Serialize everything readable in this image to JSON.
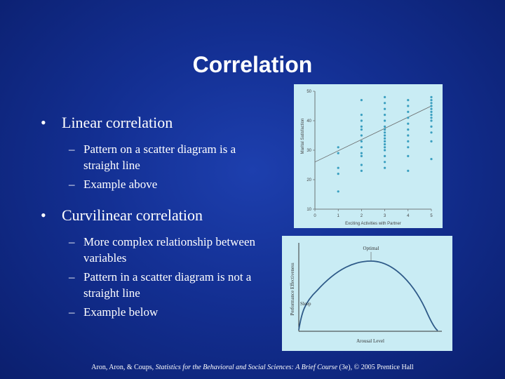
{
  "slide": {
    "title": "Correlation",
    "bullets": [
      {
        "text": "Linear correlation",
        "subs": [
          "Pattern on a scatter diagram is a straight line",
          "Example above"
        ]
      },
      {
        "text": "Curvilinear correlation",
        "subs": [
          "More complex relationship between variables",
          "Pattern in a scatter diagram is not a straight line",
          "Example below"
        ]
      }
    ],
    "bullet_glyph": "•",
    "dash_glyph": "–",
    "footer": {
      "authors": "Aron, Aron, & Coups, ",
      "book": "Statistics for the Behavioral and Social Sciences: A Brief Course",
      "edition": " (3e), © 2005 Prentice Hall"
    }
  },
  "chart_data": [
    {
      "type": "scatter",
      "xlabel": "Exciting Activities with Partner",
      "ylabel": "Marital Satisfaction",
      "xlim": [
        0,
        5
      ],
      "ylim": [
        10,
        50
      ],
      "x_ticks": [
        "0",
        "1",
        "2",
        "3",
        "4",
        "5"
      ],
      "y_ticks": [
        "10",
        "20",
        "30",
        "40",
        "50"
      ],
      "points": [
        [
          1,
          16
        ],
        [
          1,
          22
        ],
        [
          1,
          24
        ],
        [
          1,
          29
        ],
        [
          1,
          31
        ],
        [
          2,
          23
        ],
        [
          2,
          25
        ],
        [
          2,
          28
        ],
        [
          2,
          29
        ],
        [
          2,
          31
        ],
        [
          2,
          33
        ],
        [
          2,
          35
        ],
        [
          2,
          37
        ],
        [
          2,
          38
        ],
        [
          2,
          40
        ],
        [
          2,
          42
        ],
        [
          2,
          47
        ],
        [
          3,
          24
        ],
        [
          3,
          26
        ],
        [
          3,
          28
        ],
        [
          3,
          30
        ],
        [
          3,
          31
        ],
        [
          3,
          32
        ],
        [
          3,
          33
        ],
        [
          3,
          34
        ],
        [
          3,
          35
        ],
        [
          3,
          36
        ],
        [
          3,
          37
        ],
        [
          3,
          38
        ],
        [
          3,
          40
        ],
        [
          3,
          42
        ],
        [
          3,
          44
        ],
        [
          3,
          46
        ],
        [
          3,
          48
        ],
        [
          4,
          23
        ],
        [
          4,
          28
        ],
        [
          4,
          31
        ],
        [
          4,
          33
        ],
        [
          4,
          35
        ],
        [
          4,
          37
        ],
        [
          4,
          39
        ],
        [
          4,
          41
        ],
        [
          4,
          43
        ],
        [
          4,
          45
        ],
        [
          4,
          47
        ],
        [
          5,
          27
        ],
        [
          5,
          33
        ],
        [
          5,
          36
        ],
        [
          5,
          38
        ],
        [
          5,
          40
        ],
        [
          5,
          41
        ],
        [
          5,
          42
        ],
        [
          5,
          43
        ],
        [
          5,
          44
        ],
        [
          5,
          45
        ],
        [
          5,
          46
        ],
        [
          5,
          47
        ],
        [
          5,
          48
        ]
      ],
      "trend": [
        [
          0,
          26
        ],
        [
          5,
          45
        ]
      ],
      "point_color": "#3a9fc0"
    },
    {
      "type": "line",
      "xlabel": "Arousal Level",
      "ylabel": "Performance Effectiveness",
      "annotations": [
        "Optimal",
        "Sleep"
      ],
      "line_color": "#2e5a88"
    }
  ]
}
